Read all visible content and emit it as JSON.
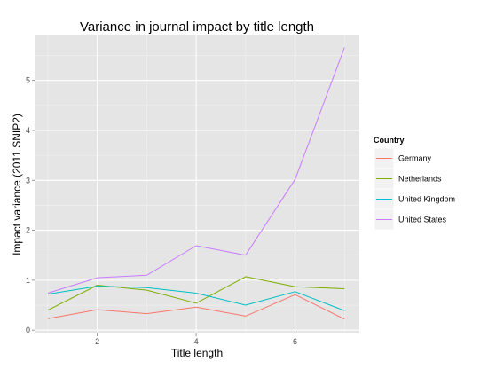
{
  "chart_data": {
    "type": "line",
    "title": "Variance in journal impact by title length",
    "xlabel": "Title length",
    "ylabel": "Impact variance (2011 SNIP2)",
    "x": [
      1,
      2,
      3,
      4,
      5,
      6,
      7
    ],
    "xlim": [
      0.75,
      7.3
    ],
    "ylim": [
      -0.05,
      5.9
    ],
    "xticks": [
      2,
      4,
      6
    ],
    "yticks": [
      0,
      1,
      2,
      3,
      4,
      5
    ],
    "grid": true,
    "background": "#E5E5E5",
    "legend": {
      "title": "Country",
      "position": "right"
    },
    "series": [
      {
        "name": "Germany",
        "color": "#F8766D",
        "values": [
          0.23,
          0.41,
          0.33,
          0.46,
          0.28,
          0.71,
          0.22
        ]
      },
      {
        "name": "Netherlands",
        "color": "#7CAE00",
        "values": [
          0.4,
          0.9,
          0.8,
          0.54,
          1.07,
          0.87,
          0.83
        ]
      },
      {
        "name": "United Kingdom",
        "color": "#00BFC4",
        "values": [
          0.72,
          0.88,
          0.85,
          0.74,
          0.5,
          0.77,
          0.39
        ]
      },
      {
        "name": "United States",
        "color": "#C77CFF",
        "values": [
          0.74,
          1.05,
          1.1,
          1.69,
          1.5,
          3.02,
          5.66
        ]
      }
    ]
  }
}
